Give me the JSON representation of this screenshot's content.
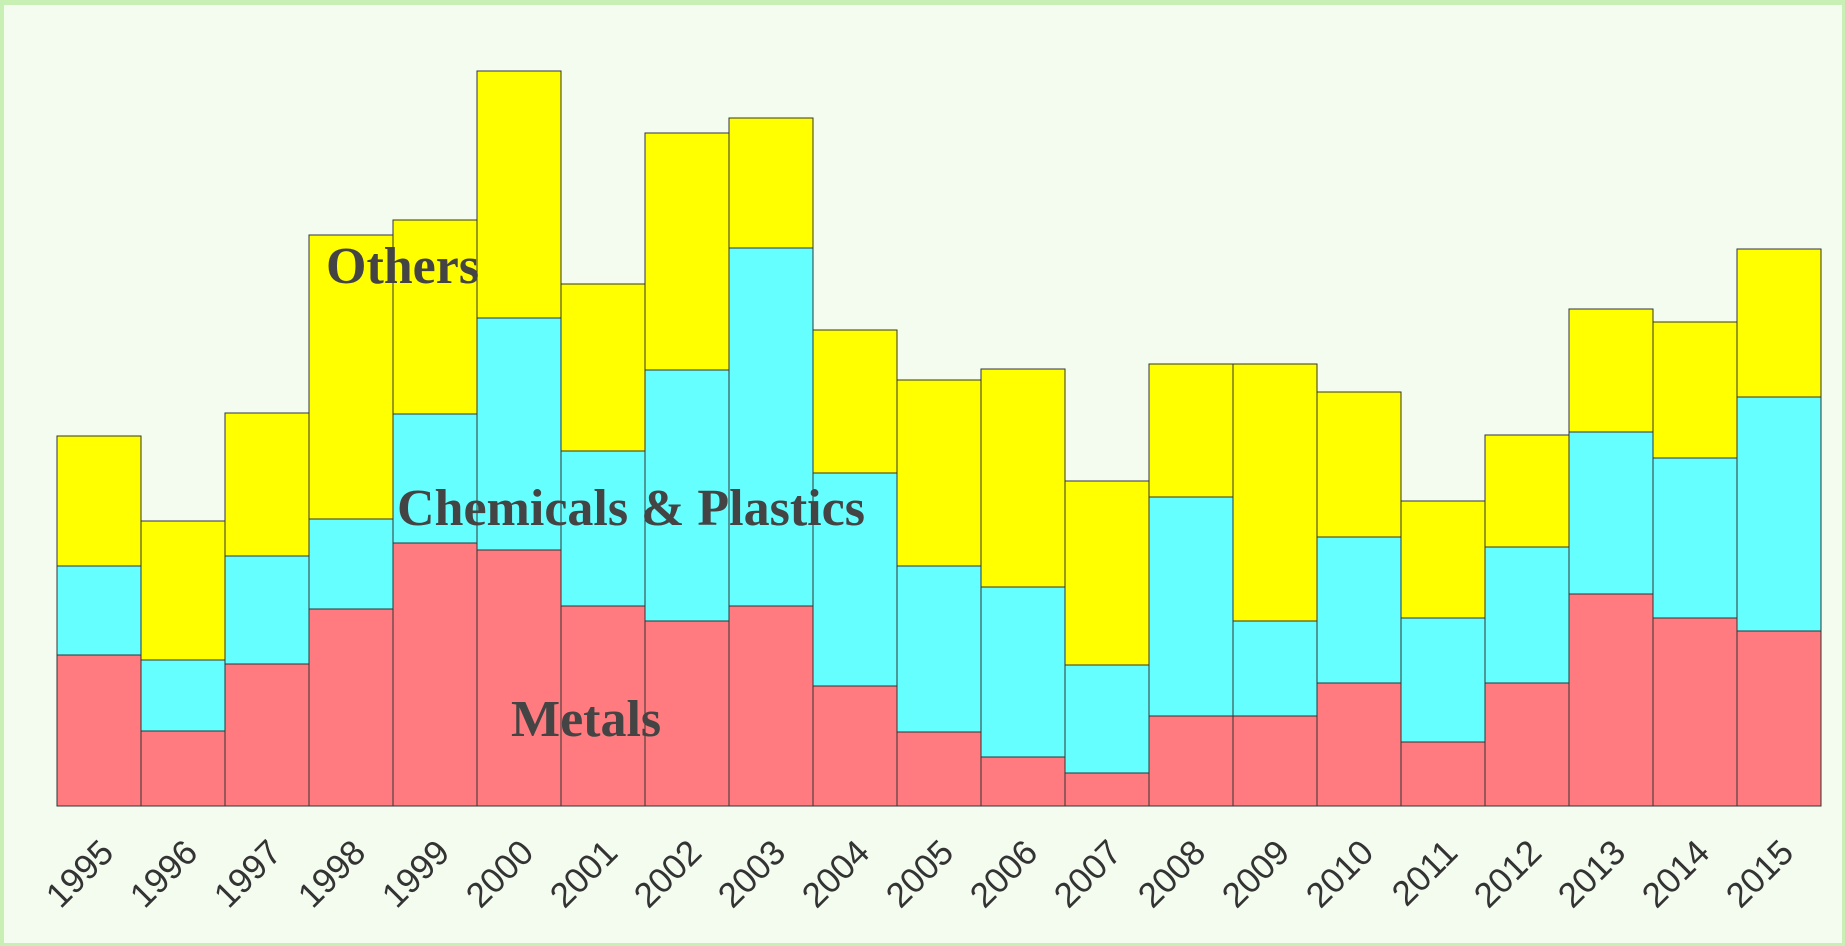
{
  "chart_data": {
    "type": "bar",
    "stacked": true,
    "categories": [
      "1995",
      "1996",
      "1997",
      "1998",
      "1999",
      "2000",
      "2001",
      "2002",
      "2003",
      "2004",
      "2005",
      "2006",
      "2007",
      "2008",
      "2009",
      "2010",
      "2011",
      "2012",
      "2013",
      "2014",
      "2015"
    ],
    "series": [
      {
        "name": "Metals",
        "color": "#ff7b7f",
        "values": [
          151,
          75,
          142,
          197,
          263,
          256,
          200,
          185,
          200,
          120,
          74,
          49,
          33,
          90,
          90,
          123,
          64,
          123,
          212,
          188,
          175
        ]
      },
      {
        "name": "Chemicals & Plastics",
        "color": "#66ffff",
        "values": [
          89,
          71,
          108,
          90,
          129,
          232,
          155,
          251,
          358,
          213,
          166,
          170,
          108,
          219,
          95,
          146,
          124,
          136,
          162,
          160,
          234
        ]
      },
      {
        "name": "Others",
        "color": "#ffff00",
        "values": [
          130,
          139,
          143,
          284,
          194,
          247,
          167,
          237,
          130,
          143,
          186,
          218,
          184,
          133,
          257,
          145,
          117,
          112,
          123,
          136,
          148
        ]
      }
    ],
    "ylim": [
      0,
      760
    ],
    "axes_visible": false,
    "grid": false,
    "legend": "none",
    "annotations": [
      {
        "text": "Others",
        "series": "Others"
      },
      {
        "text": "Chemicals & Plastics",
        "series": "Chemicals & Plastics"
      },
      {
        "text": "Metals",
        "series": "Metals"
      }
    ]
  }
}
